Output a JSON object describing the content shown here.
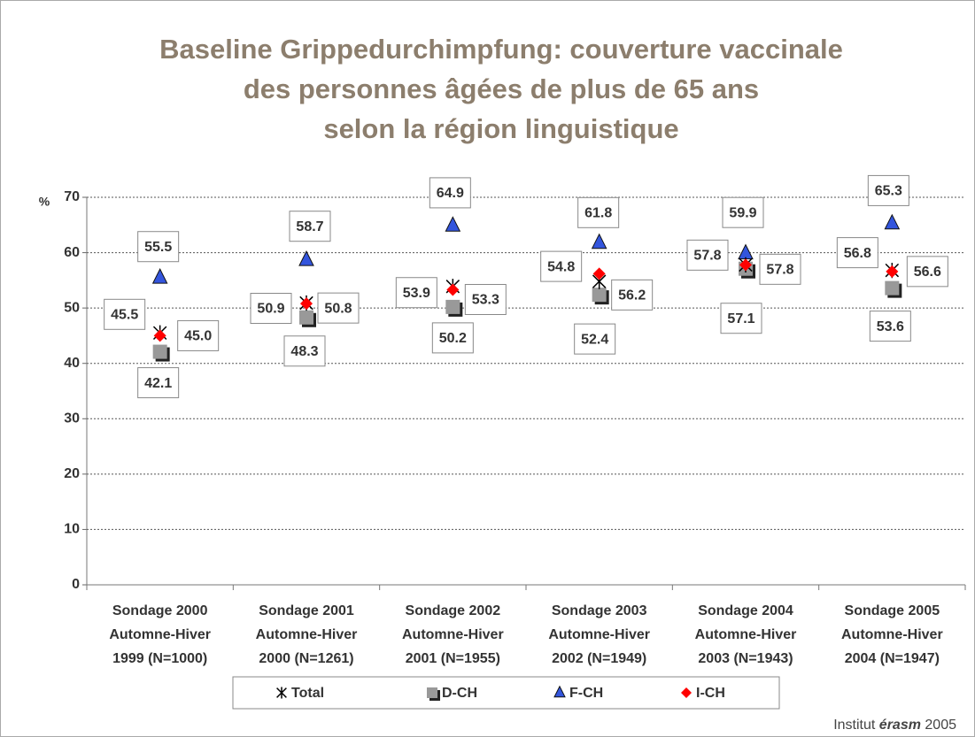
{
  "chart_data": {
    "type": "scatter",
    "title": [
      "Baseline Grippedurchimpfung: couverture vaccinale",
      "des personnes âgées de plus de 65 ans",
      "selon la région linguistique"
    ],
    "y_label": "%",
    "categories": [
      [
        "Sondage 2000",
        "Automne-Hiver",
        "1999 (N=1000)"
      ],
      [
        "Sondage 2001",
        "Automne-Hiver",
        "2000 (N=1261)"
      ],
      [
        "Sondage 2002",
        "Automne-Hiver",
        "2001 (N=1955)"
      ],
      [
        "Sondage 2003",
        "Automne-Hiver",
        "2002 (N=1949)"
      ],
      [
        "Sondage 2004",
        "Automne-Hiver",
        "2003 (N=1943)"
      ],
      [
        "Sondage 2005",
        "Automne-Hiver",
        "2004 (N=1947)"
      ]
    ],
    "series": [
      {
        "name": "Total",
        "marker": "asterisk",
        "color": "#000000",
        "values": [
          45.5,
          50.9,
          53.9,
          54.8,
          57.8,
          56.8
        ],
        "value_labels": [
          "45.5",
          "50.9",
          "53.9",
          "54.8",
          "57.8",
          "56.8"
        ]
      },
      {
        "name": "D-CH",
        "marker": "square",
        "color": "#999999",
        "values": [
          42.1,
          48.3,
          50.2,
          52.4,
          57.1,
          53.6
        ],
        "value_labels": [
          "42.1",
          "48.3",
          "50.2",
          "52.4",
          "57.1",
          "53.6"
        ]
      },
      {
        "name": "F-CH",
        "marker": "triangle",
        "color": "#3355dd",
        "values": [
          55.5,
          58.7,
          64.9,
          61.8,
          59.9,
          65.3
        ],
        "value_labels": [
          "55.5",
          "58.7",
          "64.9",
          "61.8",
          "59.9",
          "65.3"
        ]
      },
      {
        "name": "I-CH",
        "marker": "diamond",
        "color": "#ff0000",
        "values": [
          45,
          50.8,
          53.3,
          56.2,
          57.8,
          56.6
        ],
        "value_labels": [
          "45.0",
          "50.8",
          "53.3",
          "56.2",
          "57.8",
          "56.6"
        ]
      }
    ],
    "ylim": [
      0,
      70
    ],
    "yticks": [
      0,
      10,
      20,
      30,
      40,
      50,
      60,
      70
    ],
    "grid": true,
    "legend": "bottom",
    "source": {
      "prefix": "Institut",
      "brand": "érasm",
      "year": "2005"
    }
  }
}
